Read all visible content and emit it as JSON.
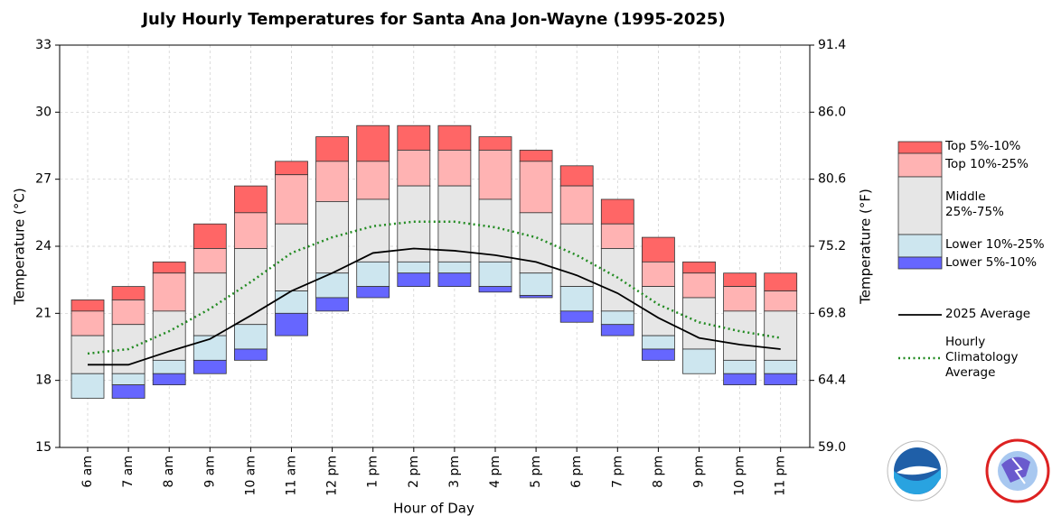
{
  "chart_data": {
    "type": "bar",
    "title": "July Hourly Temperatures for Santa Ana Jon-Wayne (1995-2025)",
    "xlabel": "Hour of Day",
    "ylabel": "Temperature (°C)",
    "y2label": "Temperature (°F)",
    "categories": [
      "6 am",
      "7 am",
      "8 am",
      "9 am",
      "10 am",
      "11 am",
      "12 pm",
      "1 pm",
      "2 pm",
      "3 pm",
      "4 pm",
      "5 pm",
      "6 pm",
      "7 pm",
      "8 pm",
      "9 pm",
      "10 pm",
      "11 pm"
    ],
    "series": [
      {
        "name": "Top 5%-10%",
        "color": "#ff6666",
        "values": [
          [
            21.1,
            21.6
          ],
          [
            21.6,
            22.2
          ],
          [
            22.8,
            23.3
          ],
          [
            23.9,
            25.0
          ],
          [
            25.5,
            26.7
          ],
          [
            27.2,
            27.8
          ],
          [
            27.8,
            28.9
          ],
          [
            27.8,
            29.4
          ],
          [
            28.3,
            29.4
          ],
          [
            28.3,
            29.4
          ],
          [
            28.3,
            28.9
          ],
          [
            27.8,
            28.3
          ],
          [
            26.7,
            27.6
          ],
          [
            25.0,
            26.1
          ],
          [
            23.3,
            24.4
          ],
          [
            22.8,
            23.3
          ],
          [
            22.2,
            22.8
          ],
          [
            22.0,
            22.8
          ]
        ]
      },
      {
        "name": "Top 10%-25%",
        "color": "#ffb3b3",
        "values": [
          [
            20.0,
            21.1
          ],
          [
            20.5,
            21.6
          ],
          [
            21.1,
            22.8
          ],
          [
            22.8,
            23.9
          ],
          [
            23.9,
            25.5
          ],
          [
            25.0,
            27.2
          ],
          [
            26.0,
            27.8
          ],
          [
            26.1,
            27.8
          ],
          [
            26.7,
            28.3
          ],
          [
            26.7,
            28.3
          ],
          [
            26.1,
            28.3
          ],
          [
            25.5,
            27.8
          ],
          [
            25.0,
            26.7
          ],
          [
            23.9,
            25.0
          ],
          [
            22.2,
            23.3
          ],
          [
            21.7,
            22.8
          ],
          [
            21.1,
            22.2
          ],
          [
            21.1,
            22.0
          ]
        ]
      },
      {
        "name": "Middle 25%-75%",
        "color": "#e6e6e6",
        "values": [
          [
            18.3,
            20.0
          ],
          [
            18.3,
            20.5
          ],
          [
            18.9,
            21.1
          ],
          [
            20.0,
            22.8
          ],
          [
            20.5,
            23.9
          ],
          [
            22.0,
            25.0
          ],
          [
            22.8,
            26.0
          ],
          [
            23.3,
            26.1
          ],
          [
            23.3,
            26.7
          ],
          [
            23.3,
            26.7
          ],
          [
            23.3,
            26.1
          ],
          [
            22.8,
            25.5
          ],
          [
            22.2,
            25.0
          ],
          [
            21.1,
            23.9
          ],
          [
            20.0,
            22.2
          ],
          [
            19.4,
            21.7
          ],
          [
            18.9,
            21.1
          ],
          [
            18.9,
            21.1
          ]
        ]
      },
      {
        "name": "Lower 10%-25%",
        "color": "#cde6ef",
        "values": [
          [
            17.2,
            18.3
          ],
          [
            17.8,
            18.3
          ],
          [
            18.3,
            18.9
          ],
          [
            18.9,
            20.0
          ],
          [
            19.4,
            20.5
          ],
          [
            21.0,
            22.0
          ],
          [
            21.7,
            22.8
          ],
          [
            22.2,
            23.3
          ],
          [
            22.8,
            23.3
          ],
          [
            22.8,
            23.3
          ],
          [
            22.2,
            23.3
          ],
          [
            21.8,
            22.8
          ],
          [
            21.1,
            22.2
          ],
          [
            20.5,
            21.1
          ],
          [
            19.4,
            20.0
          ],
          [
            18.3,
            19.4
          ],
          [
            18.3,
            18.9
          ],
          [
            18.3,
            18.9
          ]
        ]
      },
      {
        "name": "Lower 5%-10%",
        "color": "#6666ff",
        "values": [
          [
            17.2,
            17.2
          ],
          [
            17.2,
            17.8
          ],
          [
            17.8,
            18.3
          ],
          [
            18.3,
            18.9
          ],
          [
            18.9,
            19.4
          ],
          [
            20.0,
            21.0
          ],
          [
            21.1,
            21.7
          ],
          [
            21.7,
            22.2
          ],
          [
            22.2,
            22.8
          ],
          [
            22.2,
            22.8
          ],
          [
            21.95,
            22.2
          ],
          [
            21.7,
            21.8
          ],
          [
            20.6,
            21.1
          ],
          [
            20.0,
            20.5
          ],
          [
            18.9,
            19.4
          ],
          [
            18.3,
            18.3
          ],
          [
            17.8,
            18.3
          ],
          [
            17.8,
            18.3
          ]
        ]
      },
      {
        "name": "2025 Average",
        "type": "line",
        "color": "#000000",
        "values": [
          18.7,
          18.7,
          19.3,
          19.85,
          20.9,
          22.0,
          22.8,
          23.7,
          23.9,
          23.8,
          23.6,
          23.3,
          22.7,
          21.9,
          20.8,
          19.9,
          19.6,
          19.4
        ]
      },
      {
        "name": "Hourly Climatology Average",
        "type": "line",
        "style": "dotted",
        "color": "#228b22",
        "values": [
          19.2,
          19.4,
          20.2,
          21.2,
          22.4,
          23.7,
          24.4,
          24.9,
          25.1,
          25.1,
          24.85,
          24.4,
          23.6,
          22.6,
          21.4,
          20.6,
          20.2,
          19.9
        ]
      }
    ],
    "ylim": [
      15,
      33
    ],
    "yticks": [
      15,
      18,
      21,
      24,
      27,
      30,
      33
    ],
    "y2lim": [
      59,
      91.4
    ],
    "y2ticks": [
      {
        "value": 59,
        "label": "59.0"
      },
      64.4,
      69.8,
      75.2,
      80.6,
      {
        "value": 86,
        "label": "86.0"
      },
      91.4
    ],
    "grid": true,
    "legend": "right"
  }
}
